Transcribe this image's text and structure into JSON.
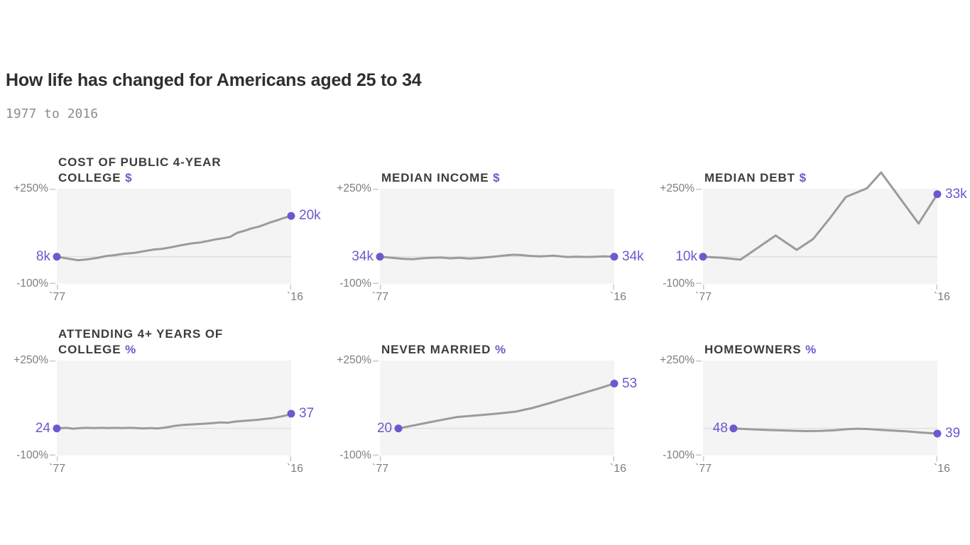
{
  "chart_data": {
    "type": "line",
    "title": "How life has changed for Americans aged 25 to 34",
    "subtitle": "1977 to 2016",
    "x_axis": {
      "start_label": "`77",
      "end_label": "`16",
      "start_year": 1977,
      "end_year": 2016
    },
    "y_axis": {
      "top_label": "+250%",
      "bottom_label": "-100%",
      "max_pct": 250,
      "min_pct": -100,
      "unit": "percent change since 1977"
    },
    "legend": "none",
    "grid": "zero-baseline only",
    "colors": {
      "accent": "#6a5acd",
      "line": "#9b9b9b",
      "plot_background": "#f4f4f4",
      "baseline": "#d8d8d8",
      "tick": "#c8c8c8",
      "axis_text": "#7e7e7e",
      "title_text": "#2e2e2e",
      "panel_title_text": "#3d3d3d",
      "subtitle_text": "#8d8d8d"
    },
    "panels": [
      {
        "title_text": "COST OF PUBLIC 4-YEAR COLLEGE",
        "unit": "$",
        "start_value": "8k",
        "end_value": "20k",
        "start_pct": 0,
        "end_pct": 150,
        "points_pct": [
          [
            0,
            0
          ],
          [
            0.04,
            -6
          ],
          [
            0.09,
            -13
          ],
          [
            0.13,
            -10
          ],
          [
            0.17,
            -5
          ],
          [
            0.21,
            2
          ],
          [
            0.25,
            6
          ],
          [
            0.29,
            11
          ],
          [
            0.33,
            14
          ],
          [
            0.37,
            20
          ],
          [
            0.41,
            26
          ],
          [
            0.45,
            29
          ],
          [
            0.49,
            35
          ],
          [
            0.53,
            42
          ],
          [
            0.57,
            48
          ],
          [
            0.61,
            52
          ],
          [
            0.64,
            57
          ],
          [
            0.68,
            64
          ],
          [
            0.71,
            68
          ],
          [
            0.74,
            73
          ],
          [
            0.77,
            88
          ],
          [
            0.8,
            95
          ],
          [
            0.83,
            104
          ],
          [
            0.86,
            110
          ],
          [
            0.88,
            116
          ],
          [
            0.91,
            126
          ],
          [
            0.94,
            134
          ],
          [
            0.97,
            143
          ],
          [
            1,
            150
          ]
        ]
      },
      {
        "title_text": "MEDIAN INCOME",
        "unit": "$",
        "start_value": "34k",
        "end_value": "34k",
        "start_pct": 0,
        "end_pct": 0,
        "points_pct": [
          [
            0,
            0
          ],
          [
            0.05,
            -4
          ],
          [
            0.1,
            -8
          ],
          [
            0.14,
            -9
          ],
          [
            0.18,
            -6
          ],
          [
            0.22,
            -4
          ],
          [
            0.26,
            -3
          ],
          [
            0.3,
            -6
          ],
          [
            0.34,
            -4
          ],
          [
            0.38,
            -7
          ],
          [
            0.42,
            -5
          ],
          [
            0.46,
            -2
          ],
          [
            0.5,
            1
          ],
          [
            0.54,
            5
          ],
          [
            0.57,
            7
          ],
          [
            0.6,
            6
          ],
          [
            0.64,
            3
          ],
          [
            0.68,
            1
          ],
          [
            0.71,
            2
          ],
          [
            0.74,
            4
          ],
          [
            0.77,
            1
          ],
          [
            0.8,
            -1
          ],
          [
            0.84,
            0
          ],
          [
            0.88,
            -1
          ],
          [
            0.92,
            0
          ],
          [
            0.96,
            1
          ],
          [
            1,
            0
          ]
        ]
      },
      {
        "title_text": "MEDIAN DEBT",
        "unit": "$",
        "start_value": "10k",
        "end_value": "33k",
        "start_pct": 0,
        "end_pct": 230,
        "points_pct": [
          [
            0,
            0
          ],
          [
            0.08,
            -4
          ],
          [
            0.16,
            -11
          ],
          [
            0.31,
            78
          ],
          [
            0.4,
            25
          ],
          [
            0.47,
            65
          ],
          [
            0.54,
            140
          ],
          [
            0.61,
            220
          ],
          [
            0.7,
            252
          ],
          [
            0.76,
            310
          ],
          [
            0.92,
            122
          ],
          [
            1,
            230
          ]
        ]
      },
      {
        "title_text": "ATTENDING 4+ YEARS OF COLLEGE",
        "unit": "%",
        "start_value": "24",
        "end_value": "37",
        "start_pct": 0,
        "end_pct": 54,
        "points_pct": [
          [
            0,
            0
          ],
          [
            0.04,
            2
          ],
          [
            0.07,
            -1
          ],
          [
            0.1,
            1
          ],
          [
            0.13,
            2
          ],
          [
            0.16,
            1
          ],
          [
            0.19,
            2
          ],
          [
            0.22,
            1
          ],
          [
            0.25,
            2
          ],
          [
            0.28,
            1
          ],
          [
            0.31,
            2
          ],
          [
            0.34,
            1
          ],
          [
            0.37,
            0
          ],
          [
            0.4,
            1
          ],
          [
            0.43,
            0
          ],
          [
            0.46,
            3
          ],
          [
            0.5,
            9
          ],
          [
            0.54,
            13
          ],
          [
            0.58,
            15
          ],
          [
            0.62,
            17
          ],
          [
            0.66,
            19
          ],
          [
            0.7,
            22
          ],
          [
            0.73,
            21
          ],
          [
            0.76,
            25
          ],
          [
            0.8,
            28
          ],
          [
            0.83,
            30
          ],
          [
            0.86,
            32
          ],
          [
            0.89,
            35
          ],
          [
            0.92,
            38
          ],
          [
            0.95,
            43
          ],
          [
            0.98,
            48
          ],
          [
            1,
            54
          ]
        ]
      },
      {
        "title_text": "NEVER MARRIED",
        "unit": "%",
        "start_value": "20",
        "end_value": "53",
        "start_pct": 0,
        "end_pct": 165,
        "points_pct": [
          [
            0.079,
            0
          ],
          [
            0.15,
            12
          ],
          [
            0.22,
            24
          ],
          [
            0.28,
            34
          ],
          [
            0.33,
            42
          ],
          [
            0.4,
            47
          ],
          [
            0.47,
            52
          ],
          [
            0.53,
            57
          ],
          [
            0.58,
            62
          ],
          [
            0.65,
            75
          ],
          [
            0.72,
            92
          ],
          [
            0.79,
            110
          ],
          [
            0.86,
            128
          ],
          [
            0.93,
            146
          ],
          [
            1,
            165
          ]
        ]
      },
      {
        "title_text": "HOMEOWNERS",
        "unit": "%",
        "start_value": "48",
        "end_value": "39",
        "start_pct": 0,
        "end_pct": -19,
        "points_pct": [
          [
            0.13,
            0
          ],
          [
            0.2,
            -3
          ],
          [
            0.28,
            -6
          ],
          [
            0.36,
            -8
          ],
          [
            0.44,
            -10
          ],
          [
            0.5,
            -9
          ],
          [
            0.56,
            -7
          ],
          [
            0.61,
            -3
          ],
          [
            0.66,
            -1
          ],
          [
            0.7,
            -2
          ],
          [
            0.75,
            -5
          ],
          [
            0.81,
            -8
          ],
          [
            0.87,
            -11
          ],
          [
            0.93,
            -15
          ],
          [
            1,
            -19
          ]
        ]
      }
    ]
  }
}
